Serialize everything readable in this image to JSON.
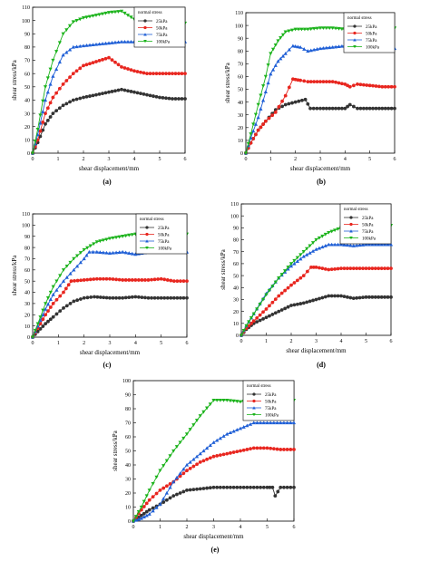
{
  "colors": {
    "25kPa": "#333333",
    "50kPa": "#e8261f",
    "75kPa": "#1f5fd6",
    "100kPa": "#1bb31b"
  },
  "chart_data": [
    {
      "type": "line",
      "panel_label": "(a)",
      "xlabel": "shear displacement/mm",
      "ylabel": "shear stress/kPa",
      "xlim": [
        0,
        6
      ],
      "ylim": [
        0,
        110
      ],
      "xticks": [
        0,
        1,
        2,
        3,
        4,
        5,
        6
      ],
      "yticks": [
        0,
        10,
        20,
        30,
        40,
        50,
        60,
        70,
        80,
        90,
        100,
        110
      ],
      "legend_title": "normal stress",
      "legend_position": "top-right",
      "series": [
        {
          "name": "25kPa",
          "x": [
            0,
            0.2,
            0.5,
            0.8,
            1.2,
            1.6,
            2.0,
            2.5,
            3.0,
            3.5,
            4.0,
            4.5,
            5.0,
            5.5,
            6.0
          ],
          "y": [
            0,
            8,
            22,
            30,
            36,
            40,
            42,
            44,
            46,
            48,
            46,
            44,
            42,
            41,
            41
          ]
        },
        {
          "name": "50kPa",
          "x": [
            0,
            0.2,
            0.5,
            0.8,
            1.2,
            1.6,
            2.0,
            2.5,
            3.0,
            3.5,
            4.0,
            4.5,
            5.0,
            5.5,
            6.0
          ],
          "y": [
            0,
            10,
            30,
            42,
            52,
            60,
            66,
            69,
            72,
            65,
            62,
            60,
            60,
            60,
            60
          ]
        },
        {
          "name": "75kPa",
          "x": [
            0,
            0.2,
            0.5,
            0.8,
            1.2,
            1.6,
            2.0,
            2.5,
            3.0,
            3.5,
            4.0,
            4.5,
            5.0,
            5.5,
            6.0
          ],
          "y": [
            0,
            14,
            40,
            58,
            74,
            80,
            81,
            82,
            83,
            84,
            84,
            84,
            84,
            84,
            84
          ]
        },
        {
          "name": "100kPa",
          "x": [
            0,
            0.2,
            0.5,
            0.8,
            1.2,
            1.6,
            2.0,
            2.5,
            3.0,
            3.5,
            4.0,
            4.5,
            5.0,
            5.5,
            6.0
          ],
          "y": [
            0,
            18,
            50,
            70,
            90,
            99,
            102,
            104,
            106,
            107,
            101,
            99,
            97,
            98,
            98
          ]
        }
      ]
    },
    {
      "type": "line",
      "panel_label": "(b)",
      "xlabel": "shear displacement/mm",
      "ylabel": "shear stress/kPa",
      "xlim": [
        0,
        6
      ],
      "ylim": [
        0,
        110
      ],
      "xticks": [
        0,
        1,
        2,
        3,
        4,
        5,
        6
      ],
      "yticks": [
        0,
        10,
        20,
        30,
        40,
        50,
        60,
        70,
        80,
        90,
        100,
        110
      ],
      "legend_title": "normal stress",
      "legend_position": "top-right",
      "series": [
        {
          "name": "25kPa",
          "x": [
            0,
            0.2,
            0.5,
            0.8,
            1.2,
            1.6,
            2.0,
            2.4,
            2.6,
            3.0,
            3.5,
            4.0,
            4.2,
            4.5,
            5.0,
            5.5,
            6.0
          ],
          "y": [
            0,
            8,
            18,
            25,
            34,
            38,
            40,
            42,
            35,
            35,
            35,
            35,
            38,
            35,
            35,
            35,
            35
          ]
        },
        {
          "name": "50kPa",
          "x": [
            0,
            0.2,
            0.5,
            0.8,
            1.2,
            1.6,
            1.9,
            2.2,
            2.5,
            3.0,
            3.5,
            4.0,
            4.2,
            4.5,
            5.0,
            5.5,
            6.0
          ],
          "y": [
            0,
            8,
            18,
            25,
            32,
            45,
            58,
            57,
            56,
            56,
            56,
            54,
            52,
            54,
            53,
            52,
            52
          ]
        },
        {
          "name": "75kPa",
          "x": [
            0,
            0.2,
            0.5,
            0.8,
            1.0,
            1.3,
            1.6,
            1.9,
            2.2,
            2.5,
            3.0,
            3.5,
            4.0,
            4.5,
            5.0,
            5.5,
            6.0
          ],
          "y": [
            0,
            12,
            28,
            48,
            62,
            72,
            78,
            84,
            83,
            80,
            82,
            83,
            84,
            82,
            82,
            82,
            82
          ]
        },
        {
          "name": "100kPa",
          "x": [
            0,
            0.2,
            0.5,
            0.8,
            1.0,
            1.3,
            1.6,
            2.0,
            2.5,
            3.0,
            3.5,
            4.0,
            4.5,
            5.0,
            5.5,
            6.0
          ],
          "y": [
            0,
            15,
            38,
            60,
            78,
            88,
            95,
            97,
            97,
            98,
            98,
            97,
            95,
            95,
            97,
            98
          ]
        }
      ]
    },
    {
      "type": "line",
      "panel_label": "(c)",
      "xlabel": "shear displacement/mm",
      "ylabel": "shear stress/kPa",
      "xlim": [
        0,
        6
      ],
      "ylim": [
        0,
        110
      ],
      "xticks": [
        0,
        1,
        2,
        3,
        4,
        5,
        6
      ],
      "yticks": [
        0,
        10,
        20,
        30,
        40,
        50,
        60,
        70,
        80,
        90,
        100,
        110
      ],
      "legend_title": "normal stress",
      "legend_position": "top-right",
      "series": [
        {
          "name": "25kPa",
          "x": [
            0,
            0.2,
            0.5,
            0.8,
            1.2,
            1.6,
            2.0,
            2.4,
            3.0,
            3.5,
            4.0,
            4.5,
            5.0,
            5.5,
            6.0
          ],
          "y": [
            0,
            5,
            12,
            18,
            26,
            32,
            35,
            36,
            35,
            35,
            36,
            35,
            35,
            35,
            35
          ]
        },
        {
          "name": "50kPa",
          "x": [
            0,
            0.2,
            0.5,
            0.8,
            1.2,
            1.5,
            2.0,
            2.5,
            3.0,
            3.5,
            4.0,
            4.5,
            5.0,
            5.5,
            6.0
          ],
          "y": [
            0,
            8,
            20,
            30,
            40,
            50,
            51,
            52,
            52,
            51,
            51,
            51,
            52,
            50,
            50
          ]
        },
        {
          "name": "75kPa",
          "x": [
            0,
            0.2,
            0.5,
            0.8,
            1.2,
            1.6,
            2.0,
            2.2,
            2.5,
            3.0,
            3.5,
            4.0,
            4.5,
            5.0,
            5.5,
            6.0
          ],
          "y": [
            0,
            10,
            25,
            38,
            50,
            60,
            70,
            76,
            76,
            75,
            76,
            74,
            76,
            76,
            76,
            76
          ]
        },
        {
          "name": "100kPa",
          "x": [
            0,
            0.2,
            0.5,
            0.8,
            1.2,
            1.6,
            2.0,
            2.5,
            3.0,
            3.5,
            4.0,
            4.5,
            5.0,
            5.5,
            6.0
          ],
          "y": [
            0,
            12,
            30,
            45,
            60,
            70,
            78,
            85,
            88,
            90,
            92,
            92,
            93,
            92,
            92
          ]
        }
      ]
    },
    {
      "type": "line",
      "panel_label": "(d)",
      "xlabel": "shear displacement/mm",
      "ylabel": "shear stress/kPa",
      "xlim": [
        0,
        6
      ],
      "ylim": [
        0,
        110
      ],
      "xticks": [
        0,
        1,
        2,
        3,
        4,
        5,
        6
      ],
      "yticks": [
        0,
        10,
        20,
        30,
        40,
        50,
        60,
        70,
        80,
        90,
        100,
        110
      ],
      "legend_title": "normal stress",
      "legend_position": "top-right",
      "series": [
        {
          "name": "25kPa",
          "x": [
            0,
            0.2,
            0.5,
            1.0,
            1.5,
            2.0,
            2.5,
            3.0,
            3.5,
            4.0,
            4.5,
            5.0,
            5.5,
            6.0
          ],
          "y": [
            0,
            5,
            10,
            15,
            20,
            25,
            27,
            30,
            33,
            33,
            31,
            32,
            32,
            32
          ]
        },
        {
          "name": "50kPa",
          "x": [
            0,
            0.2,
            0.5,
            1.0,
            1.5,
            2.0,
            2.5,
            2.8,
            3.0,
            3.5,
            4.0,
            4.5,
            5.0,
            5.5,
            6.0
          ],
          "y": [
            0,
            6,
            12,
            22,
            33,
            42,
            50,
            57,
            57,
            55,
            56,
            56,
            56,
            56,
            56
          ]
        },
        {
          "name": "75kPa",
          "x": [
            0,
            0.2,
            0.5,
            1.0,
            1.5,
            2.0,
            2.5,
            3.0,
            3.5,
            4.0,
            4.5,
            5.0,
            5.5,
            6.0
          ],
          "y": [
            0,
            8,
            18,
            35,
            48,
            58,
            66,
            72,
            76,
            76,
            75,
            76,
            76,
            76
          ]
        },
        {
          "name": "100kPa",
          "x": [
            0,
            0.2,
            0.5,
            1.0,
            1.5,
            2.0,
            2.5,
            3.0,
            3.5,
            4.0,
            4.5,
            5.0,
            5.5,
            6.0
          ],
          "y": [
            0,
            8,
            18,
            34,
            48,
            60,
            70,
            80,
            86,
            90,
            91,
            90,
            92,
            92
          ]
        }
      ]
    },
    {
      "type": "line",
      "panel_label": "(e)",
      "xlabel": "shear displacement/mm",
      "ylabel": "shear stress/kPa",
      "xlim": [
        0,
        6
      ],
      "ylim": [
        0,
        100
      ],
      "xticks": [
        0,
        1,
        2,
        3,
        4,
        5,
        6
      ],
      "yticks": [
        0,
        10,
        20,
        30,
        40,
        50,
        60,
        70,
        80,
        90,
        100
      ],
      "legend_title": "normal stress",
      "legend_position": "top-right",
      "series": [
        {
          "name": "25kPa",
          "x": [
            0,
            0.3,
            0.6,
            1.0,
            1.5,
            2.0,
            2.5,
            3.0,
            3.5,
            4.0,
            4.5,
            5.0,
            5.2,
            5.3,
            5.5,
            6.0
          ],
          "y": [
            0,
            4,
            8,
            12,
            18,
            22,
            23,
            24,
            24,
            24,
            24,
            24,
            24,
            18,
            24,
            24
          ]
        },
        {
          "name": "50kPa",
          "x": [
            0,
            0.3,
            0.6,
            1.0,
            1.5,
            2.0,
            2.5,
            3.0,
            3.5,
            4.0,
            4.5,
            5.0,
            5.5,
            6.0
          ],
          "y": [
            0,
            8,
            15,
            22,
            28,
            36,
            42,
            46,
            48,
            50,
            52,
            52,
            51,
            51
          ]
        },
        {
          "name": "75kPa",
          "x": [
            0,
            0.3,
            0.6,
            1.0,
            1.5,
            2.0,
            2.5,
            3.0,
            3.5,
            4.0,
            4.5,
            5.0,
            5.5,
            6.0
          ],
          "y": [
            0,
            2,
            5,
            12,
            28,
            40,
            48,
            56,
            62,
            66,
            70,
            70,
            70,
            70
          ]
        },
        {
          "name": "100kPa",
          "x": [
            0,
            0.3,
            0.6,
            1.0,
            1.5,
            2.0,
            2.5,
            3.0,
            3.5,
            4.0,
            4.5,
            5.0,
            5.5,
            6.0
          ],
          "y": [
            0,
            10,
            22,
            36,
            50,
            62,
            75,
            86,
            86,
            85,
            86,
            86,
            86,
            86
          ]
        }
      ]
    }
  ]
}
